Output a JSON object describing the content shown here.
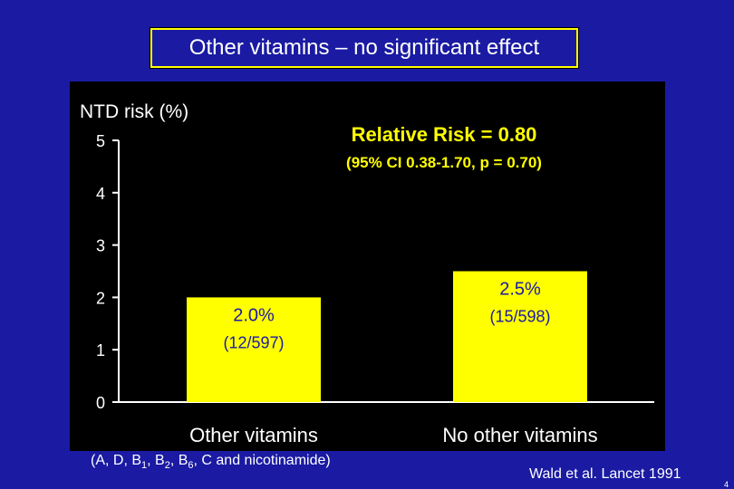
{
  "title": "Other vitamins – no significant effect",
  "chart_data": {
    "type": "bar",
    "ylabel": "NTD risk (%)",
    "ylim": [
      0,
      5
    ],
    "yticks": [
      "0",
      "1",
      "2",
      "3",
      "4",
      "5"
    ],
    "categories": [
      "Other vitamins",
      "No other vitamins"
    ],
    "values": [
      2.0,
      2.5
    ],
    "bar_labels": [
      {
        "pct": "2.0%",
        "count": "(12/597)"
      },
      {
        "pct": "2.5%",
        "count": "(15/598)"
      }
    ],
    "annotation": {
      "line1": "Relative Risk = 0.80",
      "line2": "(95% CI  0.38-1.70, p = 0.70)"
    },
    "bar_color": "#ffff00"
  },
  "footnote": {
    "prefix": "(A, D, B",
    "b1": "1",
    "sep1": ", B",
    "b2": "2",
    "sep2": ", B",
    "b6": "6",
    "suffix": ", C and nicotinamide)"
  },
  "citation": "Wald et al. Lancet  1991",
  "slide_number": "4"
}
